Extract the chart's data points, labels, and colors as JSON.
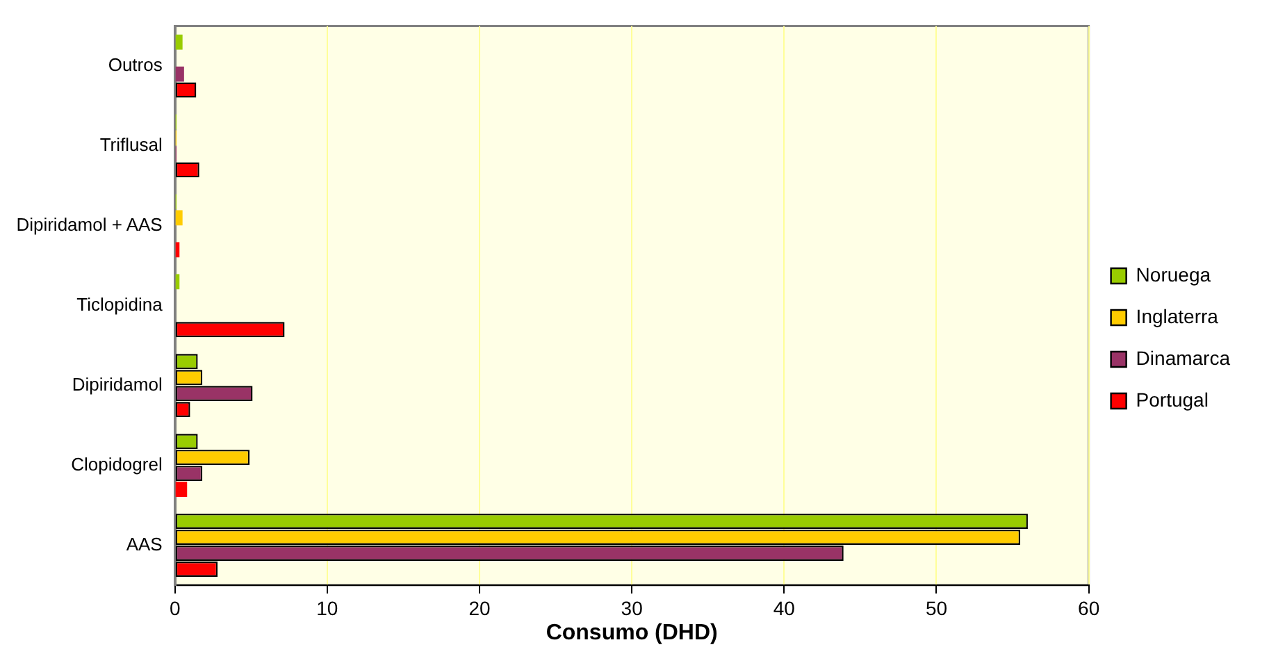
{
  "chart_data": {
    "type": "bar",
    "orientation": "horizontal",
    "xlabel": "Consumo (DHD)",
    "categories": [
      "Outros",
      "Triflusal",
      "Dipiridamol + AAS",
      "Ticlopidina",
      "Dipiridamol",
      "Clopidogrel",
      "AAS"
    ],
    "series": [
      {
        "name": "Noruega",
        "color": "#99cc00",
        "values": [
          0.5,
          0.1,
          0.1,
          0.3,
          1.5,
          1.5,
          56
        ]
      },
      {
        "name": "Inglaterra",
        "color": "#ffcc00",
        "values": [
          null,
          0.1,
          0.5,
          null,
          1.8,
          4.9,
          55.5
        ]
      },
      {
        "name": "Dinamarca",
        "color": "#993366",
        "values": [
          0.6,
          0.1,
          null,
          null,
          5.1,
          1.8,
          43.9
        ]
      },
      {
        "name": "Portugal",
        "color": "#ff0000",
        "values": [
          1.4,
          1.6,
          0.3,
          7.2,
          1.0,
          0.8,
          2.8
        ]
      }
    ],
    "xlim": [
      0,
      60
    ],
    "xticks": [
      0,
      10,
      20,
      30,
      40,
      50,
      60
    ],
    "grid": "x",
    "legend": "right"
  }
}
